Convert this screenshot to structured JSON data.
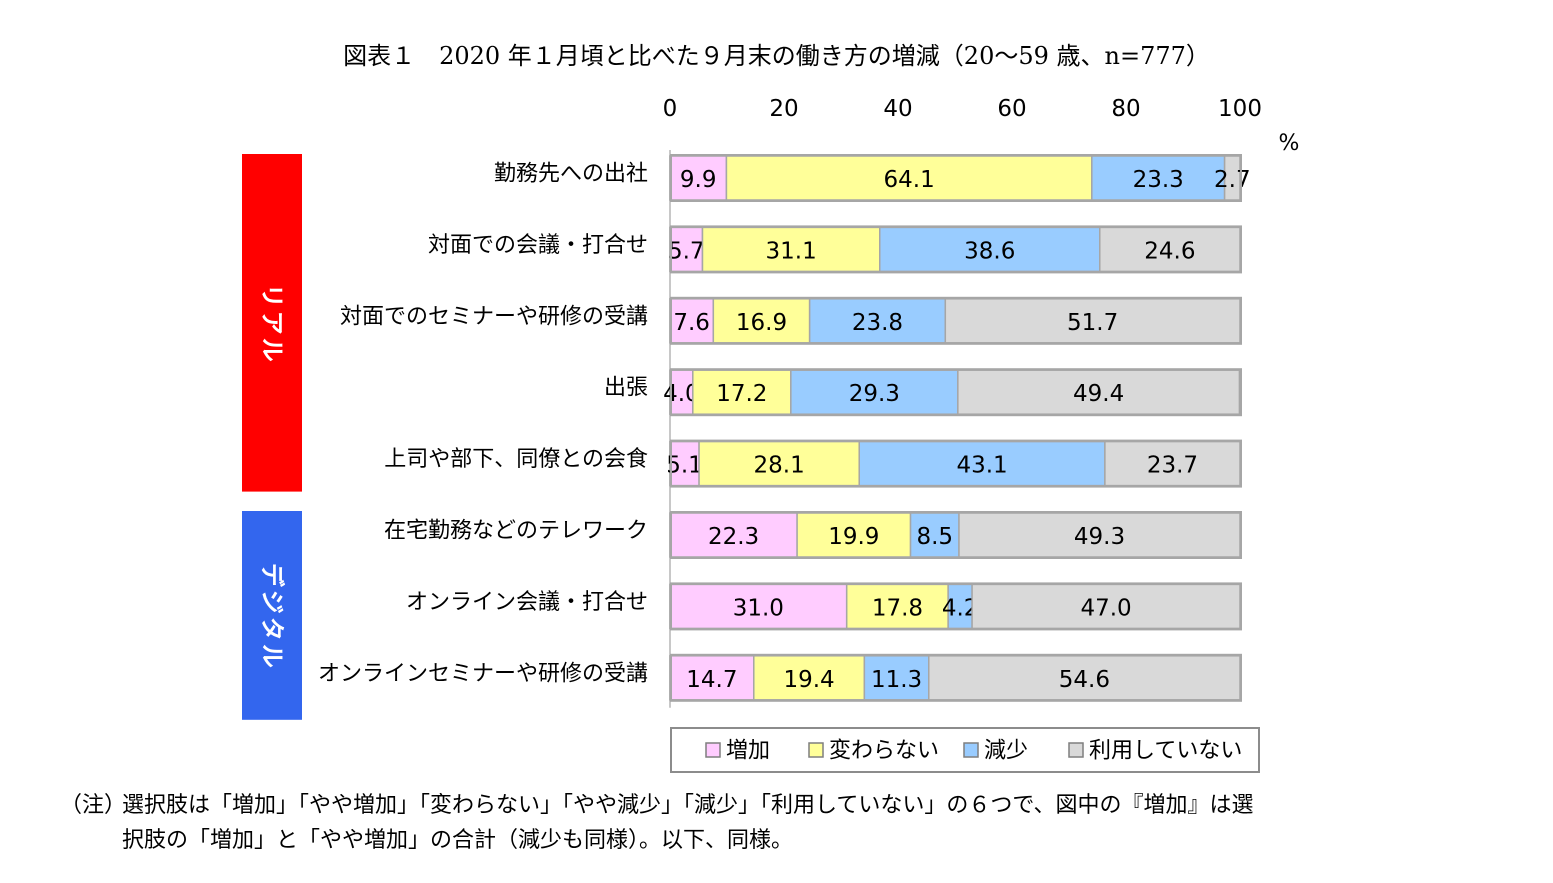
{
  "title": "図表１　2020 年１月頃と比べた９月末の働き方の増減（20～59 歳、n=777）",
  "note": {
    "label": "（注）",
    "line1": "選択肢は「増加」「やや増加」「変わらない」「やや減少」「減少」「利用していない」の６つで、図中の『増加』は選",
    "line2": "択肢の「増加」と「やや増加」の合計（減少も同様）。以下、同様。"
  },
  "chart_data": {
    "type": "bar",
    "orientation": "horizontal",
    "stacked": true,
    "unit": "%",
    "xlim": [
      0,
      100
    ],
    "xticks": [
      "0",
      "20",
      "40",
      "60",
      "80",
      "100"
    ],
    "groups": [
      {
        "label": "リアル",
        "color": "#ff0000",
        "categories": 5
      },
      {
        "label": "デジタル",
        "color": "#3366ee",
        "categories": 3
      }
    ],
    "categories": [
      "勤務先への出社",
      "対面での会議・打合せ",
      "対面でのセミナーや研修の受講",
      "出張",
      "上司や部下、同僚との会食",
      "在宅勤務などのテレワーク",
      "オンライン会議・打合せ",
      "オンラインセミナーや研修の受講"
    ],
    "series": [
      {
        "name": "増加",
        "color": "#ffccff",
        "values": [
          9.9,
          5.7,
          7.6,
          4.0,
          5.1,
          22.3,
          31.0,
          14.7
        ],
        "labels": [
          "9.9",
          "5.7",
          "7.6",
          "4.0",
          "5.1",
          "22.3",
          "31.0",
          "14.7"
        ]
      },
      {
        "name": "変わらない",
        "color": "#ffff99",
        "values": [
          64.1,
          31.1,
          16.9,
          17.2,
          28.1,
          19.9,
          17.8,
          19.4
        ],
        "labels": [
          "64.1",
          "31.1",
          "16.9",
          "17.2",
          "28.1",
          "19.9",
          "17.8",
          "19.4"
        ]
      },
      {
        "name": "減少",
        "color": "#99ccff",
        "values": [
          23.3,
          38.6,
          23.8,
          29.3,
          43.1,
          8.5,
          4.2,
          11.3
        ],
        "labels": [
          "23.3",
          "38.6",
          "23.8",
          "29.3",
          "43.1",
          "8.5",
          "4.2",
          "11.3"
        ]
      },
      {
        "name": "利用していない",
        "color": "#d9d9d9",
        "values": [
          2.7,
          24.6,
          51.7,
          49.4,
          23.7,
          49.3,
          47.0,
          54.6
        ],
        "labels": [
          "2.7",
          "24.6",
          "51.7",
          "49.4",
          "23.7",
          "49.3",
          "47.0",
          "54.6"
        ]
      }
    ],
    "legend": "bottom",
    "grid": false
  }
}
